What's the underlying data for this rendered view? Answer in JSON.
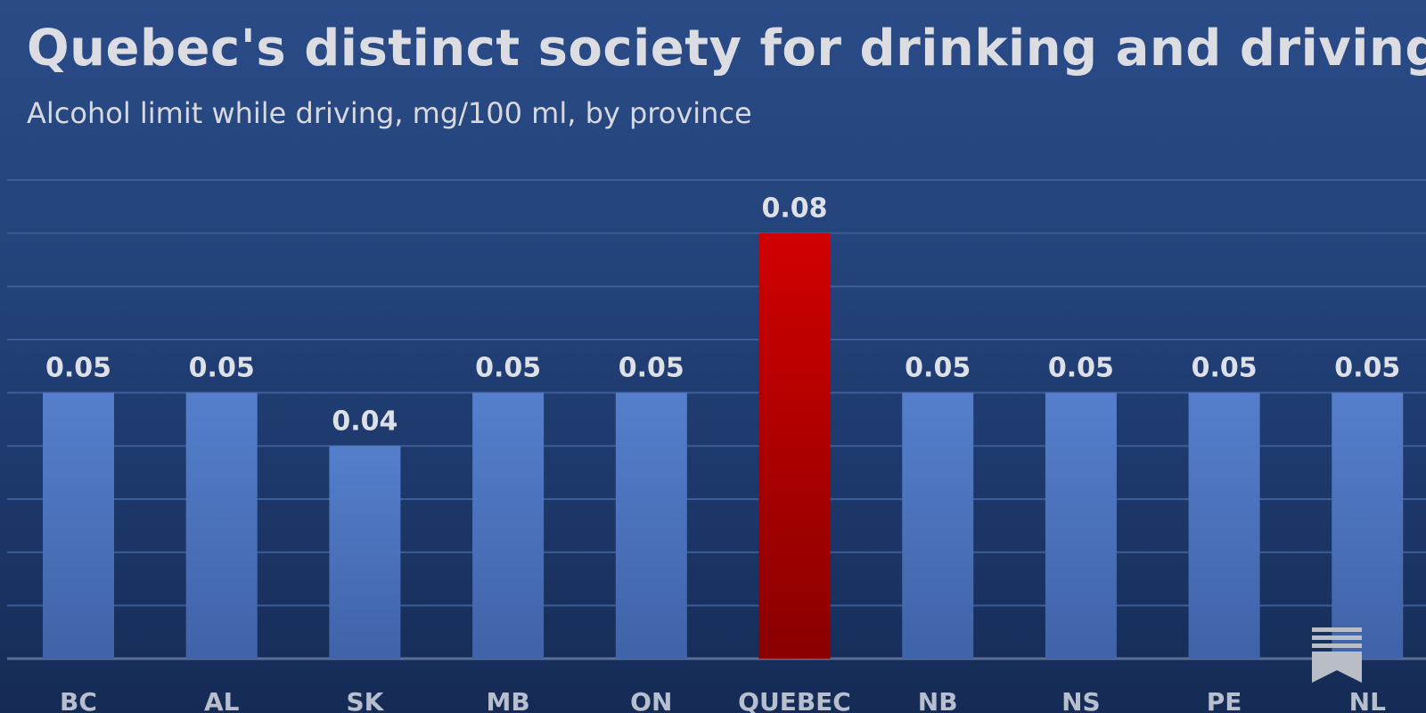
{
  "title": "Quebec's distinct society for drinking and driving",
  "subtitle": "Alcohol limit while driving, mg/100 ml, by province",
  "colors": {
    "bar": "#4f78c6",
    "highlight": "#c40000",
    "gridline": "#3b5d98",
    "label": "#dde0e6",
    "axis_label": "#b7bfcf"
  },
  "chart_data": {
    "type": "bar",
    "title": "Quebec's distinct society for drinking and driving",
    "subtitle": "Alcohol limit while driving, mg/100 ml, by province",
    "categories": [
      "BC",
      "AL",
      "SK",
      "MB",
      "ON",
      "QUEBEC",
      "NB",
      "NS",
      "PE",
      "NL"
    ],
    "values": [
      0.05,
      0.05,
      0.04,
      0.05,
      0.05,
      0.08,
      0.05,
      0.05,
      0.05,
      0.05
    ],
    "data_labels": [
      "0.05",
      "0.05",
      "0.04",
      "0.05",
      "0.05",
      "0.08",
      "0.05",
      "0.05",
      "0.05",
      "0.05"
    ],
    "highlight": "QUEBEC",
    "ylim": [
      0,
      0.09
    ],
    "grid": true,
    "legend": "none"
  },
  "icon": "bookmark-icon"
}
